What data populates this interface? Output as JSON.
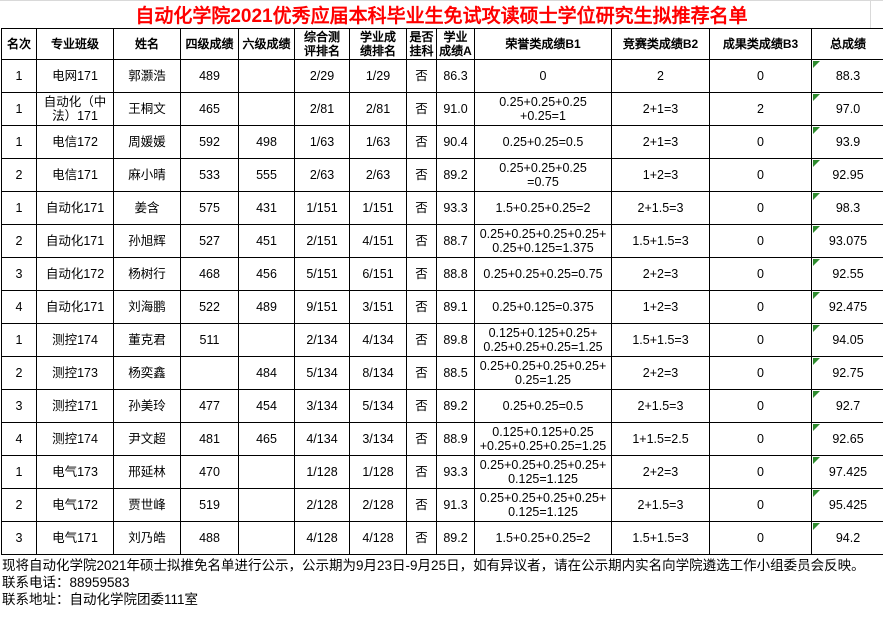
{
  "title": "自动化学院2021优秀应届本科毕业生免试攻读硕士学位研究生拟推荐名单",
  "colors": {
    "title_text": "#ff0000",
    "table_border": "#000000",
    "error_indicator": "#2e8b2e",
    "background": "#ffffff"
  },
  "table": {
    "columns": [
      "名次",
      "专业班级",
      "姓名",
      "四级成绩",
      "六级成绩",
      "综合测\n评排名",
      "学业成\n绩排名",
      "是否\n挂科",
      "学业\n成绩A",
      "荣誉类成绩B1",
      "竞赛类成绩B2",
      "成果类成绩B3",
      "总成绩"
    ],
    "rows": [
      [
        "1",
        "电网171",
        "郭灏浩",
        "489",
        "",
        "2/29",
        "1/29",
        "否",
        "86.3",
        "0",
        "2",
        "0",
        "88.3"
      ],
      [
        "1",
        "自动化（中\n法）171",
        "王桐文",
        "465",
        "",
        "2/81",
        "2/81",
        "否",
        "91.0",
        "0.25+0.25+0.25\n+0.25=1",
        "2+1=3",
        "2",
        "97.0"
      ],
      [
        "1",
        "电信172",
        "周媛媛",
        "592",
        "498",
        "1/63",
        "1/63",
        "否",
        "90.4",
        "0.25+0.25=0.5",
        "2+1=3",
        "0",
        "93.9"
      ],
      [
        "2",
        "电信171",
        "麻小晴",
        "533",
        "555",
        "2/63",
        "2/63",
        "否",
        "89.2",
        "0.25+0.25+0.25\n=0.75",
        "1+2=3",
        "0",
        "92.95"
      ],
      [
        "1",
        "自动化171",
        "姜含",
        "575",
        "431",
        "1/151",
        "1/151",
        "否",
        "93.3",
        "1.5+0.25+0.25=2",
        "2+1.5=3",
        "0",
        "98.3"
      ],
      [
        "2",
        "自动化171",
        "孙旭辉",
        "527",
        "451",
        "2/151",
        "4/151",
        "否",
        "88.7",
        "0.25+0.25+0.25+0.25+\n0.25+0.125=1.375",
        "1.5+1.5=3",
        "0",
        "93.075"
      ],
      [
        "3",
        "自动化172",
        "杨树行",
        "468",
        "456",
        "5/151",
        "6/151",
        "否",
        "88.8",
        "0.25+0.25+0.25=0.75",
        "2+2=3",
        "0",
        "92.55"
      ],
      [
        "4",
        "自动化171",
        "刘海鹏",
        "522",
        "489",
        "9/151",
        "3/151",
        "否",
        "89.1",
        "0.25+0.125=0.375",
        "1+2=3",
        "0",
        "92.475"
      ],
      [
        "1",
        "测控174",
        "董克君",
        "511",
        "",
        "2/134",
        "4/134",
        "否",
        "89.8",
        "0.125+0.125+0.25+\n0.25+0.25+0.25=1.25",
        "1.5+1.5=3",
        "0",
        "94.05"
      ],
      [
        "2",
        "测控173",
        "杨奕鑫",
        "",
        "484",
        "5/134",
        "8/134",
        "否",
        "88.5",
        "0.25+0.25+0.25+0.25+\n0.25=1.25",
        "2+2=3",
        "0",
        "92.75"
      ],
      [
        "3",
        "测控171",
        "孙美玲",
        "477",
        "454",
        "3/134",
        "5/134",
        "否",
        "89.2",
        "0.25+0.25=0.5",
        "2+1.5=3",
        "0",
        "92.7"
      ],
      [
        "4",
        "测控174",
        "尹文超",
        "481",
        "465",
        "4/134",
        "3/134",
        "否",
        "88.9",
        "0.125+0.125+0.25\n+0.25+0.25+0.25=1.25",
        "1+1.5=2.5",
        "0",
        "92.65"
      ],
      [
        "1",
        "电气173",
        "邢延林",
        "470",
        "",
        "1/128",
        "1/128",
        "否",
        "93.3",
        "0.25+0.25+0.25+0.25+\n0.125=1.125",
        "2+2=3",
        "0",
        "97.425"
      ],
      [
        "2",
        "电气172",
        "贾世峰",
        "519",
        "",
        "2/128",
        "2/128",
        "否",
        "91.3",
        "0.25+0.25+0.25+0.25+\n0.125=1.125",
        "2+1.5=3",
        "0",
        "95.425"
      ],
      [
        "3",
        "电气171",
        "刘乃皓",
        "488",
        "",
        "4/128",
        "4/128",
        "否",
        "89.2",
        "1.5+0.25+0.25=2",
        "1.5+1.5=3",
        "0",
        "94.2"
      ]
    ],
    "total_column_index": 12,
    "error_indicator_rows": [
      0,
      1,
      2,
      3,
      4,
      5,
      6,
      7,
      8,
      9,
      10,
      11,
      12,
      13,
      14
    ]
  },
  "footer": {
    "notice": "现将自动化学院2021年硕士拟推免名单进行公示，公示期为9月23日-9月25日，如有异议者，请在公示期内实名向学院遴选工作小组委员会反映。",
    "phone": "联系电话：88959583",
    "address": "联系地址：自动化学院团委111室"
  }
}
